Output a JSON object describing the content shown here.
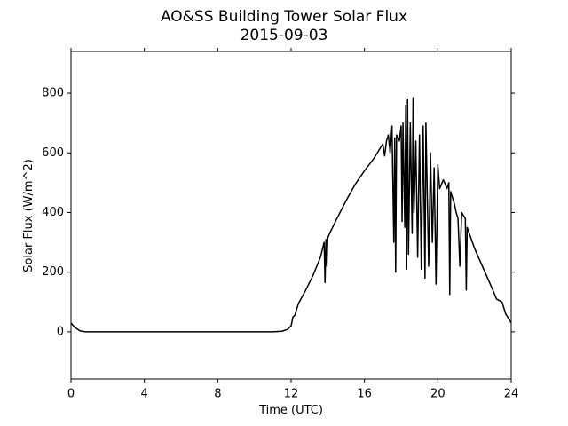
{
  "chart_data": {
    "type": "line",
    "title": "AO&SS Building Tower Solar Flux",
    "subtitle": "2015-09-03",
    "x_label": "Time (UTC)",
    "y_label": "Solar Flux (W/m^2)",
    "xlim": [
      0,
      24
    ],
    "xticks": [
      0,
      4,
      8,
      12,
      16,
      20,
      24
    ],
    "ylim": [
      -158,
      940
    ],
    "yticks": [
      0,
      200,
      400,
      600,
      800
    ],
    "grid": false,
    "series": [
      {
        "name": "Solar Flux",
        "color": "#000000",
        "x": [
          0,
          0.2,
          0.5,
          0.8,
          1,
          11,
          11.5,
          11.8,
          12.0,
          12.1,
          12.2,
          12.4,
          12.8,
          13.2,
          13.6,
          13.8,
          13.85,
          13.9,
          13.95,
          14.0,
          14.1,
          14.5,
          15,
          15.5,
          16,
          16.5,
          16.8,
          17,
          17.1,
          17.2,
          17.3,
          17.4,
          17.5,
          17.6,
          17.65,
          17.7,
          17.75,
          17.9,
          18.0,
          18.05,
          18.1,
          18.2,
          18.25,
          18.3,
          18.35,
          18.4,
          18.5,
          18.6,
          18.65,
          18.7,
          18.8,
          18.9,
          19.0,
          19.1,
          19.2,
          19.3,
          19.35,
          19.5,
          19.6,
          19.7,
          19.8,
          19.9,
          20.0,
          20.1,
          20.3,
          20.5,
          20.6,
          20.65,
          20.7,
          20.9,
          21.0,
          21.1,
          21.2,
          21.3,
          21.5,
          21.55,
          21.6,
          22,
          22.5,
          23,
          23.2,
          23.5,
          23.7,
          24
        ],
        "values": [
          30,
          15,
          3,
          0,
          0,
          0,
          2,
          8,
          20,
          50,
          55,
          95,
          140,
          190,
          250,
          300,
          165,
          310,
          220,
          315,
          330,
          380,
          440,
          495,
          540,
          580,
          610,
          630,
          590,
          640,
          660,
          600,
          690,
          300,
          650,
          200,
          660,
          640,
          690,
          370,
          700,
          350,
          760,
          210,
          780,
          260,
          700,
          330,
          785,
          400,
          640,
          250,
          660,
          210,
          690,
          180,
          700,
          220,
          600,
          300,
          550,
          160,
          560,
          480,
          510,
          480,
          500,
          125,
          470,
          430,
          400,
          380,
          220,
          400,
          380,
          140,
          350,
          280,
          210,
          140,
          110,
          100,
          60,
          30
        ]
      }
    ]
  }
}
